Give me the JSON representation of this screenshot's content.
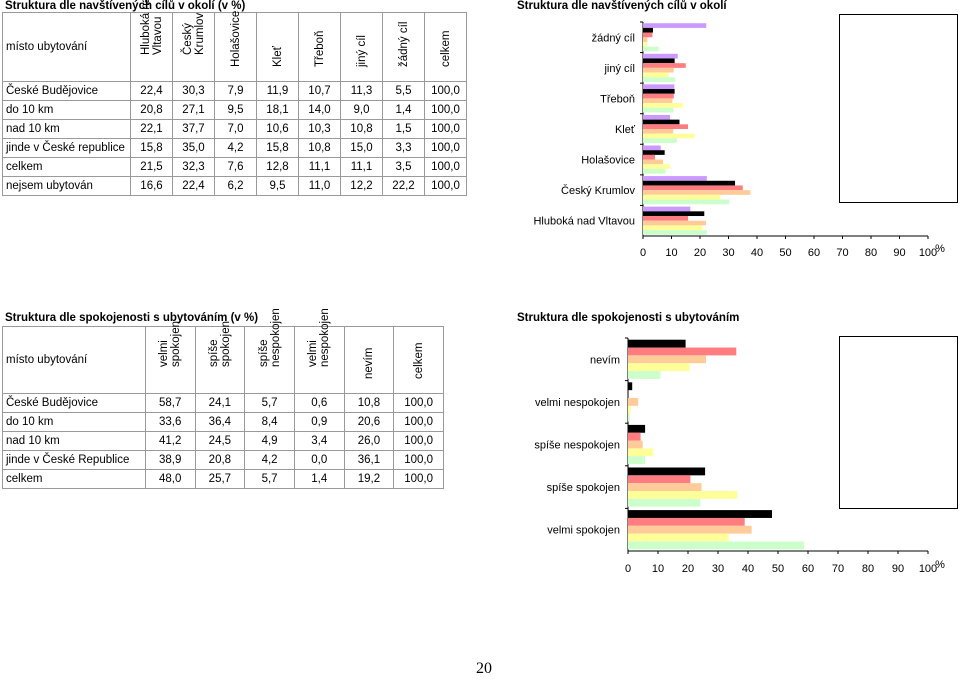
{
  "table1": {
    "title": "Struktura dle navštívených cílů v okolí (v %)",
    "corner": "místo ubytování",
    "columns": [
      "Hluboká nad Vltavou",
      "Český Krumlov",
      "Holašovice",
      "Kleť",
      "Třeboň",
      "jiný cíl",
      "žádný cíl",
      "celkem"
    ],
    "rows": [
      {
        "label": "České Budějovice",
        "values": [
          "22,4",
          "30,3",
          "7,9",
          "11,9",
          "10,7",
          "11,3",
          "5,5",
          "100,0"
        ]
      },
      {
        "label": "do 10 km",
        "values": [
          "20,8",
          "27,1",
          "9,5",
          "18,1",
          "14,0",
          "9,0",
          "1,4",
          "100,0"
        ]
      },
      {
        "label": "nad 10 km",
        "values": [
          "22,1",
          "37,7",
          "7,0",
          "10,6",
          "10,3",
          "10,8",
          "1,5",
          "100,0"
        ]
      },
      {
        "label": "jinde v České republice",
        "values": [
          "15,8",
          "35,0",
          "4,2",
          "15,8",
          "10,8",
          "15,0",
          "3,3",
          "100,0"
        ]
      },
      {
        "label": "celkem",
        "values": [
          "21,5",
          "32,3",
          "7,6",
          "12,8",
          "11,1",
          "11,1",
          "3,5",
          "100,0"
        ]
      },
      {
        "label": "nejsem ubytován",
        "values": [
          "16,6",
          "22,4",
          "6,2",
          "9,5",
          "11,0",
          "12,2",
          "22,2",
          "100,0"
        ]
      }
    ]
  },
  "table2": {
    "title": "Struktura dle spokojenosti s ubytováním (v %)",
    "corner": "místo ubytování",
    "columns": [
      "velmi spokojen",
      "spíše spokojen",
      "spíše nespokojen",
      "velmi nespokojen",
      "nevím",
      "celkem"
    ],
    "rows": [
      {
        "label": "České Budějovice",
        "values": [
          "58,7",
          "24,1",
          "5,7",
          "0,6",
          "10,8",
          "100,0"
        ]
      },
      {
        "label": "do 10 km",
        "values": [
          "33,6",
          "36,4",
          "8,4",
          "0,9",
          "20,6",
          "100,0"
        ]
      },
      {
        "label": "nad 10 km",
        "values": [
          "41,2",
          "24,5",
          "4,9",
          "3,4",
          "26,0",
          "100,0"
        ]
      },
      {
        "label": "jinde v České Republice",
        "values": [
          "38,9",
          "20,8",
          "4,2",
          "0,0",
          "36,1",
          "100,0"
        ]
      },
      {
        "label": "celkem",
        "values": [
          "48,0",
          "25,7",
          "5,7",
          "1,4",
          "19,2",
          "100,0"
        ]
      }
    ]
  },
  "chart_data": [
    {
      "type": "bar",
      "orientation": "horizontal",
      "title": "Struktura dle navštívených cílů v okolí",
      "categories": [
        "žádný cíl",
        "jiný cíl",
        "Třeboň",
        "Kleť",
        "Holašovice",
        "Český Krumlov",
        "Hluboká nad Vltavou"
      ],
      "xlabel": "%",
      "xlim": [
        0,
        100
      ],
      "xticks": [
        "0",
        "10",
        "20",
        "30",
        "40",
        "50",
        "60",
        "70",
        "80",
        "90",
        "100"
      ],
      "legend_position": "right",
      "series": [
        {
          "name": "nejsem ubytován",
          "color": "#cc99ff",
          "values": [
            22.2,
            12.2,
            11.0,
            9.5,
            6.2,
            22.4,
            16.6
          ]
        },
        {
          "name": "celkem",
          "color": "#000000",
          "values": [
            3.5,
            11.1,
            11.1,
            12.8,
            7.6,
            32.3,
            21.5
          ]
        },
        {
          "name": "jinde",
          "color": "#ff7c80",
          "values": [
            3.3,
            15.0,
            10.8,
            15.8,
            4.2,
            35.0,
            15.8
          ]
        },
        {
          "name": "nad 10",
          "color": "#ffcc99",
          "values": [
            1.5,
            10.8,
            10.3,
            10.6,
            7.0,
            37.7,
            22.1
          ]
        },
        {
          "name": "do 10",
          "color": "#ffff99",
          "values": [
            1.4,
            9.0,
            14.0,
            18.1,
            9.5,
            27.1,
            20.8
          ]
        },
        {
          "name": "České Budějovice",
          "color": "#ccffcc",
          "values": [
            5.5,
            11.3,
            10.7,
            11.9,
            7.9,
            30.3,
            22.4
          ]
        }
      ]
    },
    {
      "type": "bar",
      "orientation": "horizontal",
      "title": "Struktura dle spokojenosti s ubytováním",
      "categories": [
        "nevím",
        "velmi nespokojen",
        "spíše nespokojen",
        "spíše spokojen",
        "velmi spokojen"
      ],
      "xlabel": "%",
      "xlim": [
        0,
        100
      ],
      "xticks": [
        "0",
        "10",
        "20",
        "30",
        "40",
        "50",
        "60",
        "70",
        "80",
        "90",
        "100"
      ],
      "legend_position": "right",
      "series": [
        {
          "name": "celkem",
          "color": "#000000",
          "values": [
            19.2,
            1.4,
            5.7,
            25.7,
            48.0
          ]
        },
        {
          "name": "jinde",
          "color": "#ff7c80",
          "values": [
            36.1,
            0.0,
            4.2,
            20.8,
            38.9
          ]
        },
        {
          "name": "nad 10",
          "color": "#ffcc99",
          "values": [
            26.0,
            3.4,
            4.9,
            24.5,
            41.2
          ]
        },
        {
          "name": "do 10",
          "color": "#ffff99",
          "values": [
            20.6,
            0.9,
            8.4,
            36.4,
            33.6
          ]
        },
        {
          "name": "České Budějovice",
          "color": "#ccffcc",
          "values": [
            10.8,
            0.6,
            5.7,
            24.1,
            58.7
          ]
        }
      ]
    }
  ],
  "page_number": "20"
}
